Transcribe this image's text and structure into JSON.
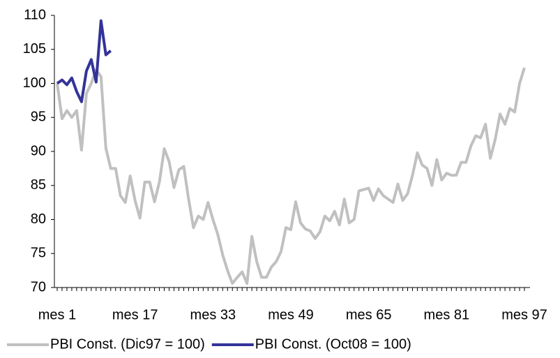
{
  "chart_data": {
    "type": "line",
    "categories": [
      "mes 1",
      null,
      null,
      null,
      null,
      null,
      null,
      null,
      null,
      null,
      null,
      null,
      null,
      null,
      null,
      null,
      "mes 17",
      null,
      null,
      null,
      null,
      null,
      null,
      null,
      null,
      null,
      null,
      null,
      null,
      null,
      null,
      null,
      "mes 33",
      null,
      null,
      null,
      null,
      null,
      null,
      null,
      null,
      null,
      null,
      null,
      null,
      null,
      null,
      null,
      "mes 49",
      null,
      null,
      null,
      null,
      null,
      null,
      null,
      null,
      null,
      null,
      null,
      null,
      null,
      null,
      null,
      "mes 65",
      null,
      null,
      null,
      null,
      null,
      null,
      null,
      null,
      null,
      null,
      null,
      null,
      null,
      null,
      null,
      "mes 81",
      null,
      null,
      null,
      null,
      null,
      null,
      null,
      null,
      null,
      null,
      null,
      null,
      null,
      null,
      null,
      "mes 97"
    ],
    "series": [
      {
        "name": "PBI Const. (Dic97 = 100)",
        "color": "#c0c0c0",
        "values": [
          100,
          94.8,
          96,
          95,
          96,
          90.2,
          98.5,
          100,
          102,
          101,
          90.5,
          87.5,
          87.5,
          83.5,
          82.5,
          86.4,
          82.8,
          80.2,
          85.5,
          85.5,
          82.6,
          85.5,
          90.4,
          88.5,
          84.7,
          87.3,
          87.8,
          83,
          78.8,
          80.5,
          80,
          82.5,
          80,
          77.8,
          74.8,
          72.5,
          70.6,
          71.5,
          72.3,
          70.6,
          77.5,
          73.8,
          71.5,
          71.5,
          73,
          73.8,
          75.3,
          78.8,
          78.5,
          82.6,
          79.5,
          78.6,
          78.3,
          77.2,
          78.2,
          80.5,
          79.8,
          81.2,
          79.2,
          83,
          79.5,
          80,
          84.2,
          84.4,
          84.6,
          82.8,
          84.5,
          83.5,
          83,
          82.5,
          85.2,
          82.8,
          83.8,
          86.5,
          89.8,
          88,
          87.5,
          85,
          88.8,
          85.8,
          86.8,
          86.5,
          86.5,
          88.4,
          88.4,
          90.8,
          92.3,
          92,
          94,
          89,
          91.8,
          95.5,
          94,
          96.3,
          95.8,
          100,
          102.3
        ]
      },
      {
        "name": "PBI Const. (Oct08 = 100)",
        "color": "#333399",
        "values": [
          100,
          100.5,
          99.8,
          100.8,
          98.8,
          97.3,
          101.8,
          103.5,
          100.2,
          109.2,
          104.2,
          104.8,
          null,
          null,
          null,
          null,
          null,
          null,
          null,
          null,
          null,
          null,
          null,
          null,
          null,
          null,
          null,
          null,
          null,
          null,
          null,
          null,
          null,
          null,
          null,
          null,
          null,
          null,
          null,
          null,
          null,
          null,
          null,
          null,
          null,
          null,
          null,
          null,
          null,
          null,
          null,
          null,
          null,
          null,
          null,
          null,
          null,
          null,
          null,
          null,
          null,
          null,
          null,
          null,
          null,
          null,
          null,
          null,
          null,
          null,
          null,
          null,
          null,
          null,
          null,
          null,
          null,
          null,
          null,
          null,
          null,
          null,
          null,
          null,
          null,
          null,
          null,
          null,
          null,
          null,
          null,
          null,
          null,
          null,
          null,
          null,
          null
        ]
      }
    ],
    "ylim": [
      70,
      110
    ],
    "yticks": [
      70,
      75,
      80,
      85,
      90,
      95,
      100,
      105,
      110
    ],
    "grid": false,
    "legend": "bottom"
  }
}
